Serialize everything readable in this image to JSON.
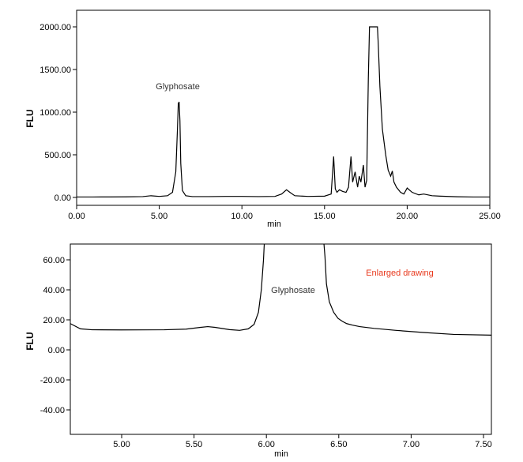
{
  "chart_data": [
    {
      "type": "line",
      "xlabel": "min",
      "ylabel": "FLU",
      "xlim": [
        0,
        25
      ],
      "ylim": [
        -60,
        2030
      ],
      "xticks": [
        0,
        5,
        10,
        15,
        20,
        25
      ],
      "xtick_labels": [
        "0.00",
        "5.00",
        "10.00",
        "15.00",
        "20.00",
        "25.00"
      ],
      "yticks": [
        0,
        500,
        1000,
        1500,
        2000
      ],
      "ytick_labels": [
        "0.00",
        "500.00",
        "1000.00",
        "1500.00",
        "2000.00"
      ],
      "grid": false,
      "series": [
        {
          "x": [
            0,
            1,
            2,
            3,
            4,
            4.5,
            5,
            5.5,
            5.8,
            6.0,
            6.1,
            6.15,
            6.2,
            6.25,
            6.3,
            6.4,
            6.6,
            7,
            8,
            9,
            10,
            11,
            12,
            12.4,
            12.7,
            12.9,
            13.2,
            14,
            15,
            15.4,
            15.55,
            15.65,
            15.75,
            15.9,
            16.1,
            16.3,
            16.45,
            16.6,
            16.7,
            16.85,
            17.0,
            17.1,
            17.2,
            17.35,
            17.45,
            17.55,
            17.65,
            17.72,
            18.2,
            18.25,
            18.35,
            18.5,
            18.7,
            18.85,
            19.0,
            19.1,
            19.2,
            19.35,
            19.6,
            19.8,
            20.0,
            20.3,
            20.7,
            21.0,
            21.5,
            22,
            23,
            24,
            25
          ],
          "y": [
            5,
            5,
            6,
            7,
            10,
            20,
            12,
            20,
            60,
            300,
            800,
            1100,
            1120,
            900,
            400,
            80,
            20,
            10,
            10,
            12,
            12,
            10,
            12,
            40,
            90,
            60,
            20,
            12,
            15,
            40,
            480,
            100,
            60,
            90,
            70,
            60,
            120,
            480,
            180,
            300,
            120,
            250,
            180,
            380,
            120,
            200,
            1400,
            2000,
            2000,
            1800,
            1300,
            800,
            500,
            320,
            250,
            310,
            180,
            120,
            60,
            40,
            110,
            60,
            30,
            40,
            20,
            15,
            8,
            5,
            5
          ]
        }
      ],
      "annotations": [
        {
          "text": "Glyphosate",
          "x": 6.2,
          "y": 1300
        }
      ]
    },
    {
      "type": "line",
      "xlabel": "min",
      "ylabel": "FLU",
      "xlim": [
        4.65,
        7.56
      ],
      "ylim": [
        -55,
        72
      ],
      "xticks": [
        5,
        5.5,
        6,
        6.5,
        7,
        7.5
      ],
      "xtick_labels": [
        "5.00",
        "5.50",
        "6.00",
        "6.50",
        "7.00",
        "7.50"
      ],
      "yticks": [
        -40,
        -20,
        0,
        20,
        40,
        60
      ],
      "ytick_labels": [
        "-40.00",
        "-20.00",
        "0.00",
        "20.00",
        "40.00",
        "60.00"
      ],
      "grid": false,
      "series": [
        {
          "x": [
            4.65,
            4.72,
            4.8,
            5.0,
            5.3,
            5.45,
            5.55,
            5.6,
            5.65,
            5.75,
            5.82,
            5.88,
            5.92,
            5.95,
            5.97,
            5.985,
            5.99,
            6.0,
            6.4,
            6.41,
            6.42,
            6.44,
            6.47,
            6.5,
            6.53,
            6.56,
            6.6,
            6.65,
            6.75,
            6.9,
            7.1,
            7.3,
            7.56
          ],
          "y": [
            17.5,
            14,
            13.4,
            13.3,
            13.4,
            13.8,
            15,
            15.5,
            15,
            13.5,
            13,
            14,
            17,
            25,
            40,
            60,
            70,
            74,
            74,
            62,
            44,
            32,
            25,
            21,
            19,
            17.5,
            16.5,
            15.5,
            14.3,
            13,
            11.5,
            10.3,
            9.8
          ]
        }
      ],
      "annotations": [
        {
          "text": "Glyphosate",
          "x": 6.2,
          "y": 40
        },
        {
          "text": "Enlarged drawing",
          "x": 6.9,
          "y": 52,
          "color": "#e8381c"
        }
      ]
    }
  ]
}
